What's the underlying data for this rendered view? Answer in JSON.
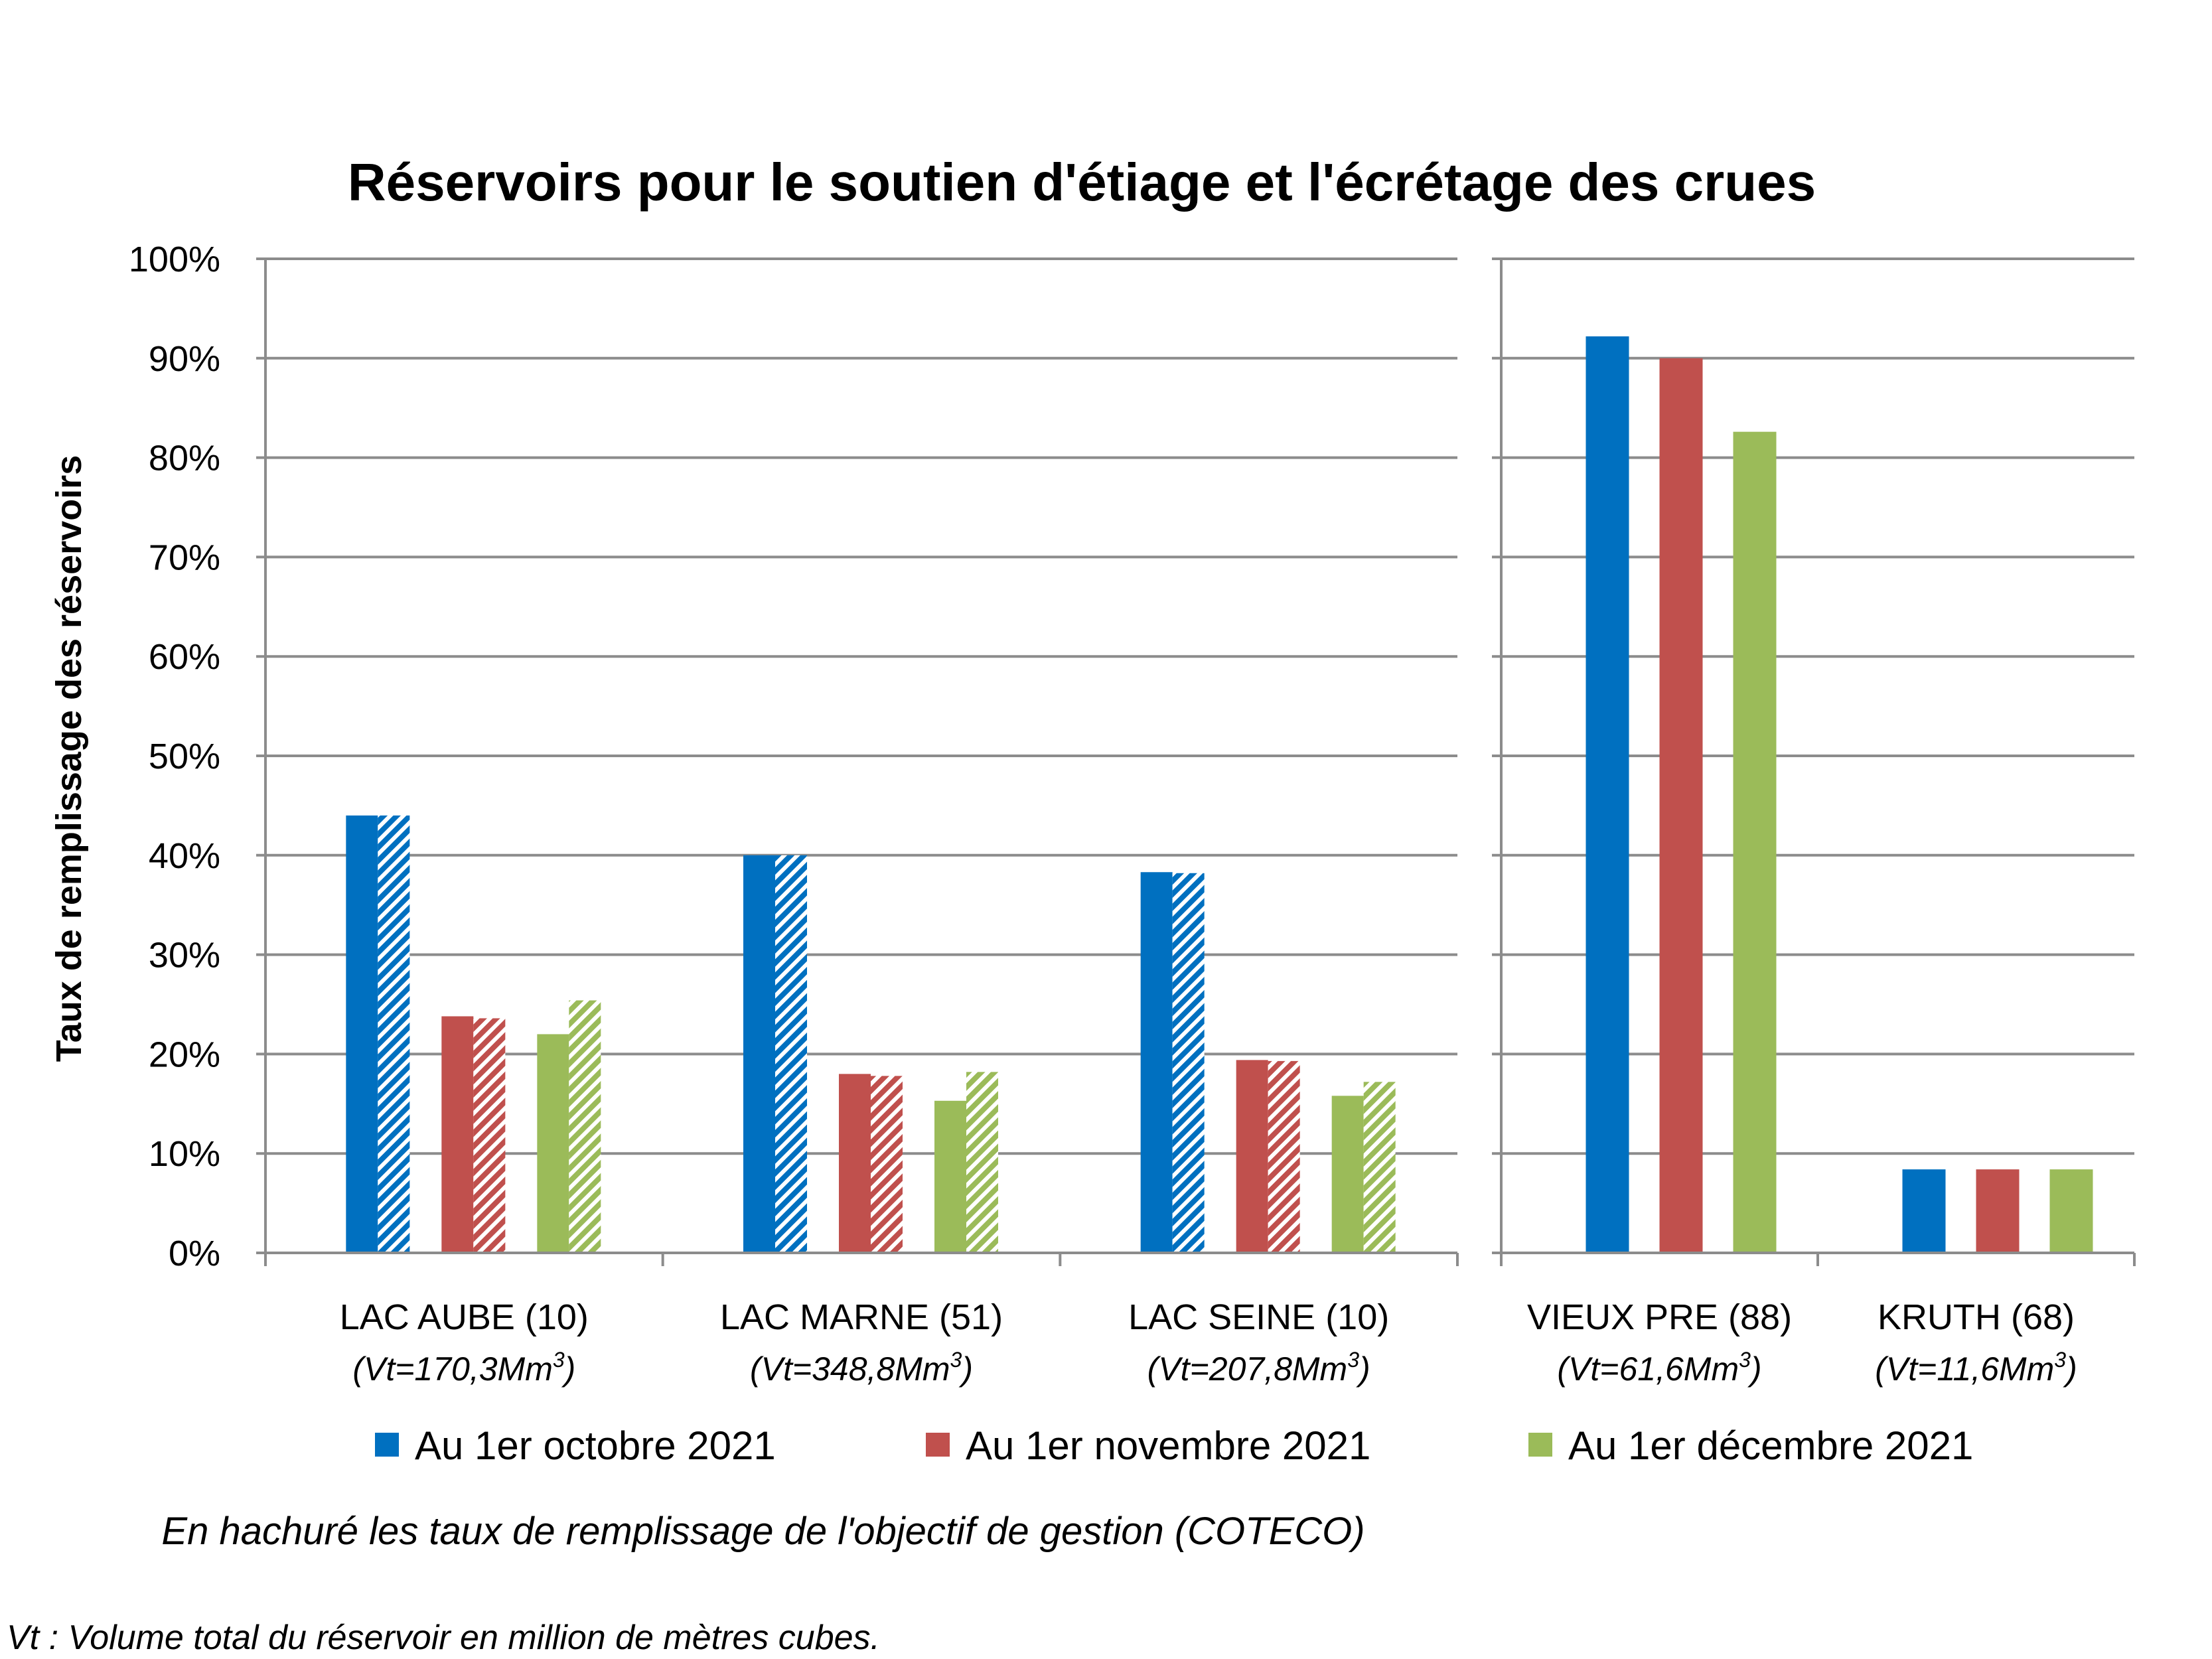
{
  "chart_data": {
    "type": "bar",
    "title": "Réservoirs pour le soutien d'étiage et l'écrétage des crues",
    "ylabel": "Taux de remplissage des réservoirs",
    "xlabel": "",
    "ylim": [
      0,
      100
    ],
    "yticks": [
      "0%",
      "10%",
      "20%",
      "30%",
      "40%",
      "50%",
      "60%",
      "70%",
      "80%",
      "90%",
      "100%"
    ],
    "grid": true,
    "legend_placement": "bottom",
    "series": [
      {
        "name": "Au 1er octobre 2021",
        "color": "#0070C0"
      },
      {
        "name": "Au 1er novembre 2021",
        "color": "#C0504D"
      },
      {
        "name": "Au 1er décembre 2021",
        "color": "#9BBB59"
      }
    ],
    "panels": [
      {
        "categories": [
          {
            "name": "LAC AUBE (10)",
            "volume": "(Vt=170,3Mm",
            "sup": "3",
            "close": ")",
            "actual": [
              44,
              23.8,
              22
            ],
            "objective": [
              44,
              23.6,
              25.4
            ]
          },
          {
            "name": "LAC MARNE (51)",
            "volume": "(Vt=348,8Mm",
            "sup": "3",
            "close": ")",
            "actual": [
              40,
              18,
              15.3
            ],
            "objective": [
              40,
              17.8,
              18.2
            ]
          },
          {
            "name": "LAC SEINE (10)",
            "volume": "(Vt=207,8Mm",
            "sup": "3",
            "close": ")",
            "actual": [
              38.3,
              19.4,
              15.8
            ],
            "objective": [
              38.2,
              19.3,
              17.2
            ]
          }
        ]
      },
      {
        "categories": [
          {
            "name": "VIEUX PRE (88)",
            "volume": "(Vt=61,6Mm",
            "sup": "3",
            "close": ")",
            "actual": [
              92.2,
              90,
              82.6
            ]
          },
          {
            "name": "KRUTH (68)",
            "volume": "(Vt=11,6Mm",
            "sup": "3",
            "close": ")",
            "actual": [
              8.4,
              8.4,
              8.4
            ]
          }
        ]
      }
    ],
    "note": "En hachuré les taux de remplissage de l'objectif de gestion (COTECO)",
    "footnote": "Vt : Volume total du réservoir en million de mètres cubes."
  }
}
